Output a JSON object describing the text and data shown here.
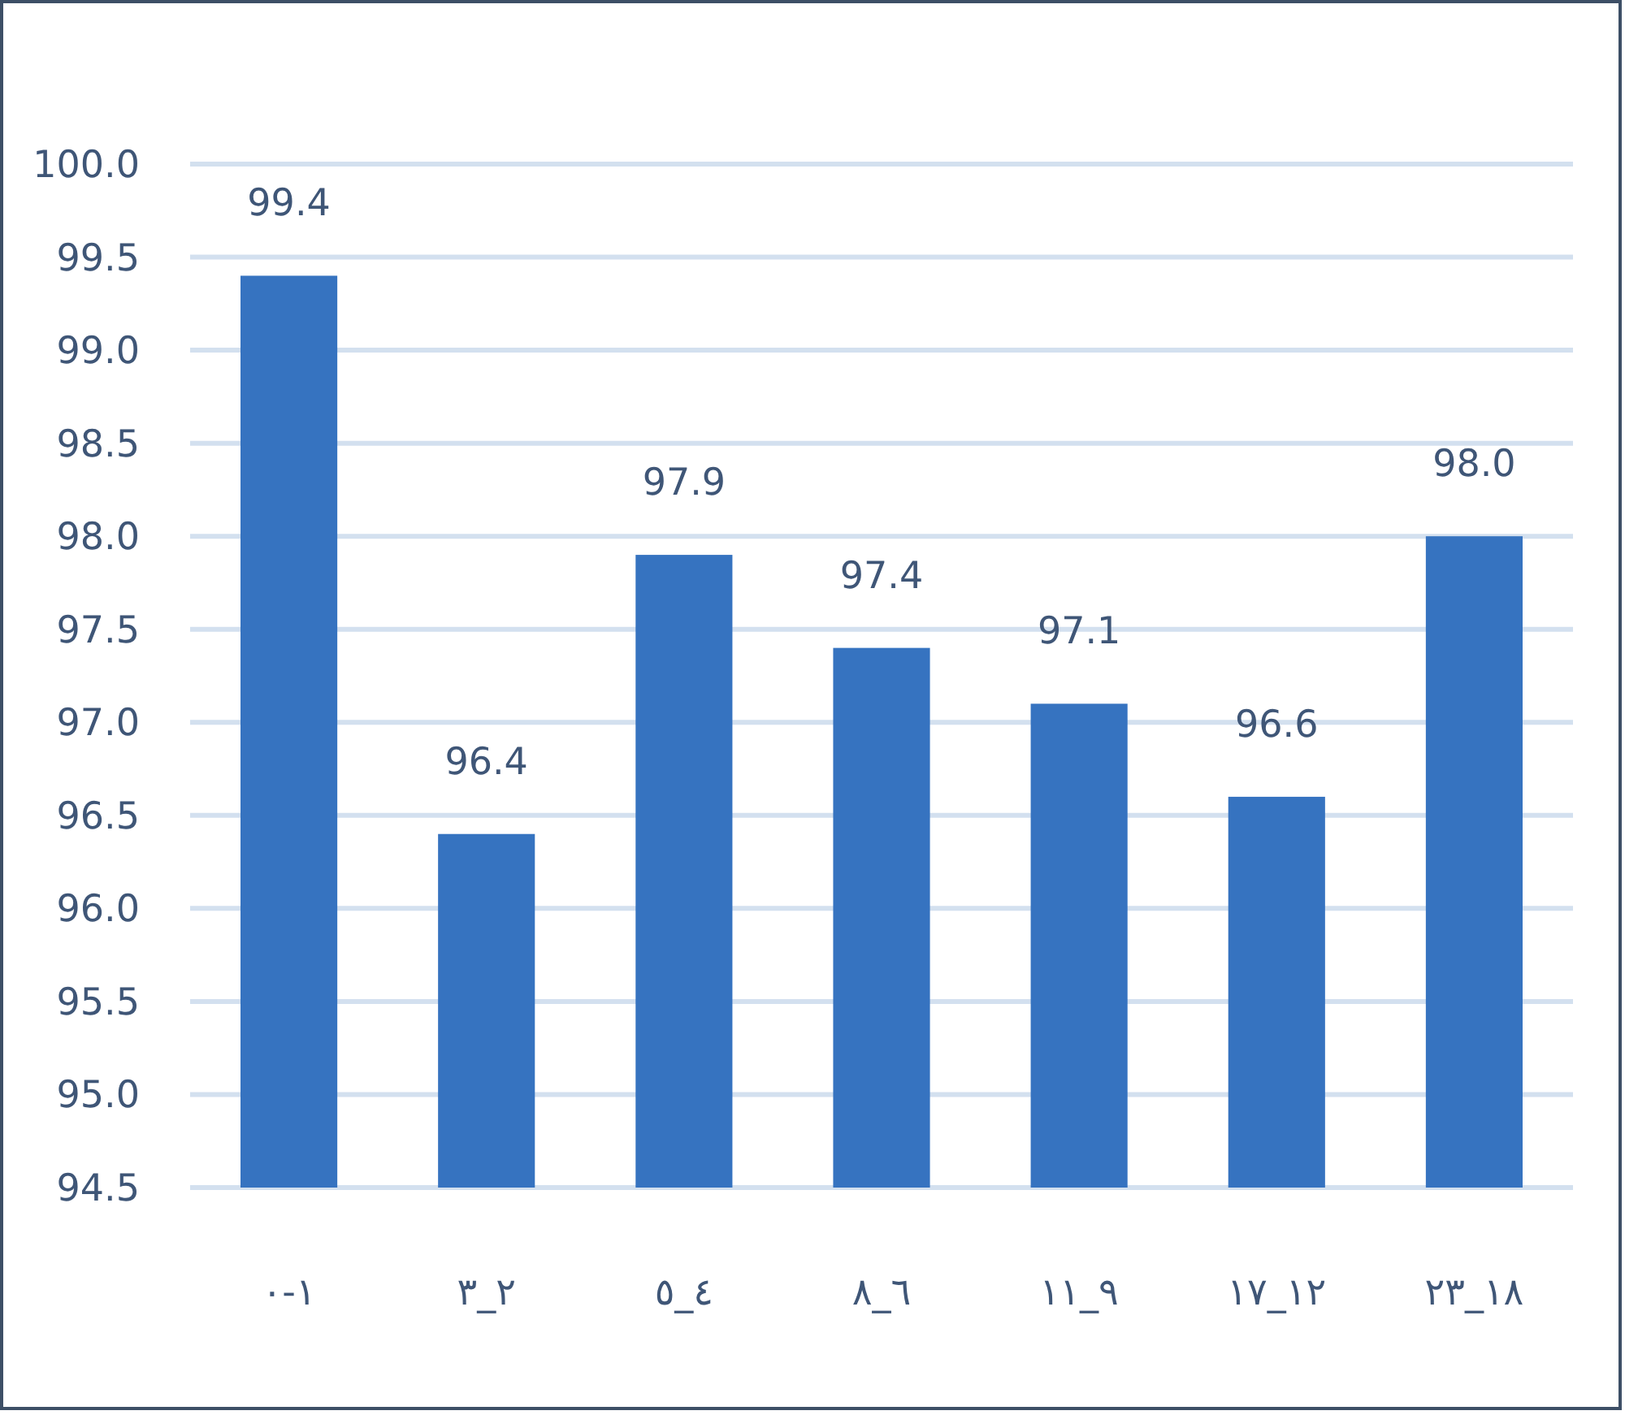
{
  "chart_data": {
    "type": "bar",
    "categories": [
      "١-٠",
      "٢_٣",
      "٤_٥",
      "٦_٨",
      "٩_١١",
      "١٢_١٧",
      "١٨_٢٣"
    ],
    "values": [
      99.4,
      96.4,
      97.9,
      97.4,
      97.1,
      96.6,
      98.0
    ],
    "color": "#3673c0",
    "ylim": [
      94.5,
      100
    ],
    "yticks": [
      {
        "value": 94.5,
        "label": "94.5"
      },
      {
        "value": 95,
        "label": "95.0"
      },
      {
        "value": 95.5,
        "label": "95.5"
      },
      {
        "value": 96,
        "label": "96.0"
      },
      {
        "value": 96.5,
        "label": "96.5"
      },
      {
        "value": 97,
        "label": "97.0"
      },
      {
        "value": 97.5,
        "label": "97.5"
      },
      {
        "value": 98,
        "label": "98.0"
      },
      {
        "value": 98.5,
        "label": "98.5"
      },
      {
        "value": 99,
        "label": "99.0"
      },
      {
        "value": 99.5,
        "label": "99.5"
      },
      {
        "value": 100,
        "label": "100.0"
      }
    ],
    "grid": "y",
    "value_labels": [
      "99.4",
      "96.4",
      "97.9",
      "97.4",
      "97.1",
      "96.6",
      "98.0"
    ]
  }
}
